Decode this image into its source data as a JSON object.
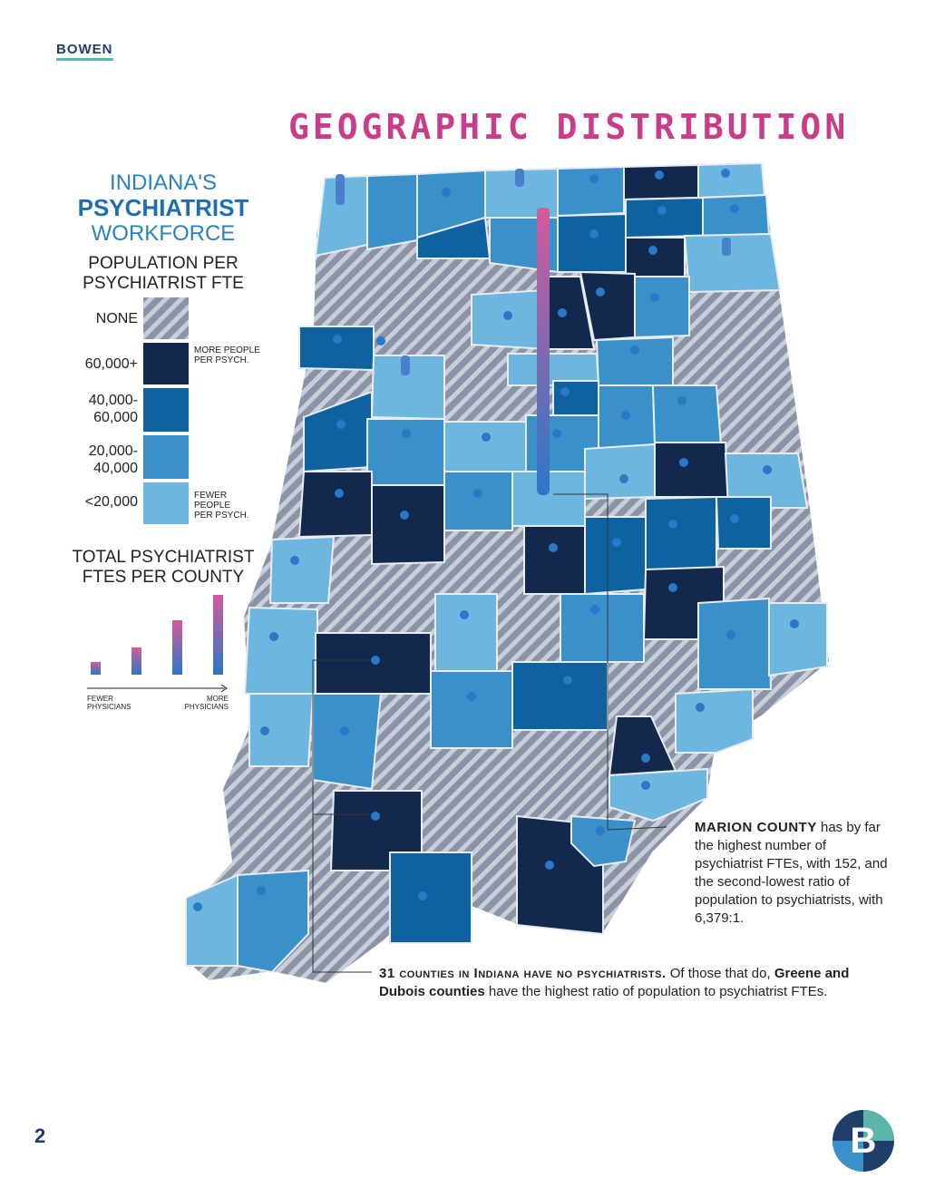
{
  "header": {
    "brand": "BOWEN",
    "title": "GEOGRAPHIC DISTRIBUTION"
  },
  "legend": {
    "heading_line1": "INDIANA'S",
    "heading_line2": "PSYCHIATRIST",
    "heading_line3": "WORKFORCE",
    "subtitle_line1": "POPULATION PER",
    "subtitle_line2": "PSYCHIATRIST FTE",
    "classes": [
      {
        "label": "NONE",
        "color": "#8a94a6",
        "pattern": "hatch"
      },
      {
        "label": "60,000+",
        "color": "#13284d"
      },
      {
        "label_line1": "40,000-",
        "label_line2": "60,000",
        "color": "#0e62a0"
      },
      {
        "label_line1": "20,000-",
        "label_line2": "40,000",
        "color": "#3a90c8"
      },
      {
        "label": "<20,000",
        "color": "#6cb6e0"
      }
    ],
    "more_note_line1": "MORE PEOPLE",
    "more_note_line2": "PER PSYCH.",
    "fewer_note_line1": "FEWER",
    "fewer_note_line2": "PEOPLE",
    "fewer_note_line3": "PER PSYCH.",
    "fte_title_line1": "TOTAL PSYCHIATRIST",
    "fte_title_line2": "FTES PER COUNTY",
    "fte_axis_left_line1": "FEWER",
    "fte_axis_left_line2": "PHYSICIANS",
    "fte_axis_right_line1": "MORE",
    "fte_axis_right_line2": "PHYSICIANS",
    "fte_bar_gradient": [
      "#2a78c8",
      "#d45a9a"
    ]
  },
  "callouts": {
    "marion_title": "MARION COUNTY",
    "marion_text": " has by far the highest number of psychiatrist FTEs, with 152, and the second-lowest ratio of population to psychiatrists, with 6,379:1.",
    "counties_lead": "31 counties in Indiana have no psychiatrists.",
    "counties_mid": " Of those that do, ",
    "counties_bold": "Greene and Dubois counties",
    "counties_end": " have the highest ratio of population to psychiatrist FTEs."
  },
  "footer": {
    "page_number": "2",
    "logo_letter": "B"
  }
}
